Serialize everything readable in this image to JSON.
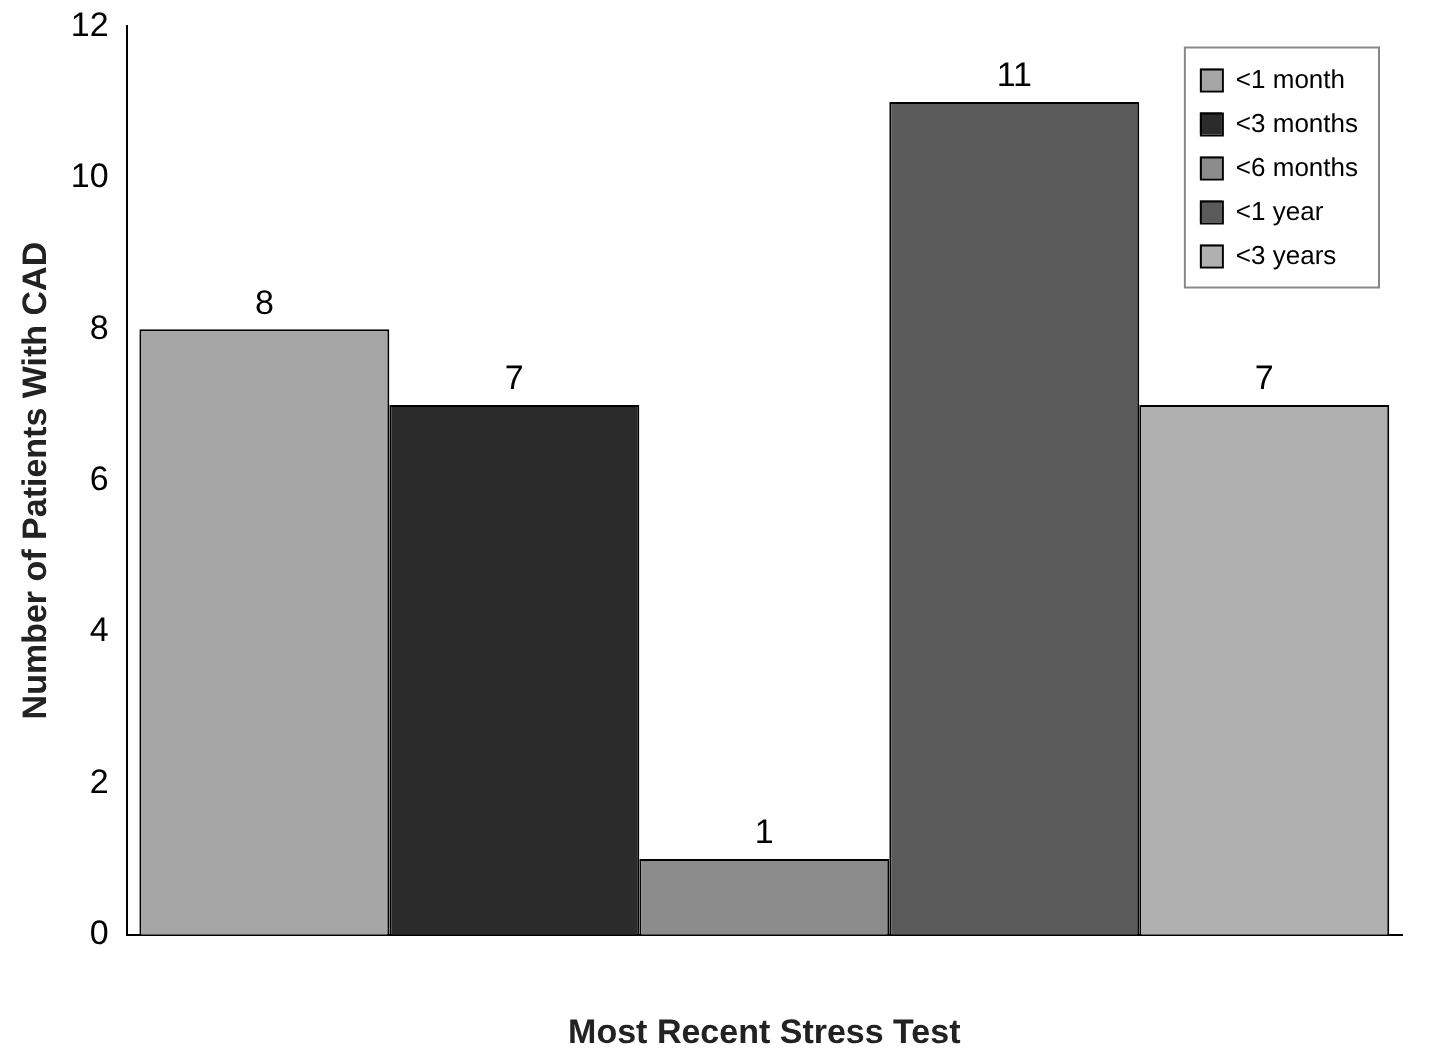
{
  "chart_data": {
    "type": "bar",
    "xlabel": "Most Recent Stress Test",
    "ylabel": "Number of Patients With CAD",
    "categories": [
      null
    ],
    "series": [
      {
        "name": "<1 month",
        "color": "#a6a6a6",
        "values": [
          8
        ]
      },
      {
        "name": "<3 months",
        "color": "#2b2b2b",
        "values": [
          7
        ]
      },
      {
        "name": "<6 months",
        "color": "#8c8c8c",
        "values": [
          1
        ]
      },
      {
        "name": "<1 year",
        "color": "#5a5a5a",
        "values": [
          11
        ]
      },
      {
        "name": "<3 years",
        "color": "#b0b0b0",
        "values": [
          7
        ]
      }
    ],
    "ylim": [
      0,
      12
    ],
    "yticks": [
      0,
      2,
      4,
      6,
      8,
      10,
      12
    ],
    "grid": false,
    "legend": "top right",
    "data_labels": true
  }
}
